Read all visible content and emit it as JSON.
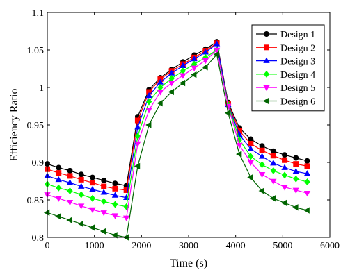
{
  "chart_data": {
    "type": "line",
    "title": "",
    "xlabel": "Time (s)",
    "ylabel": "Efficiency Ratio",
    "xlim": [
      0,
      6000
    ],
    "ylim": [
      0.8,
      1.1
    ],
    "xticks": [
      "0",
      "1000",
      "2000",
      "3000",
      "4000",
      "5000",
      "6000"
    ],
    "yticks": [
      "0.8",
      "0.85",
      "0.9",
      "0.95",
      "1",
      "1.05",
      "1.1"
    ],
    "grid": false,
    "legend_position": "top-right",
    "x": [
      0,
      240,
      480,
      720,
      960,
      1200,
      1440,
      1680,
      1920,
      2160,
      2400,
      2640,
      2880,
      3120,
      3360,
      3600,
      3840,
      4080,
      4320,
      4560,
      4800,
      5040,
      5280,
      5520
    ],
    "series": [
      {
        "name": "Design 1",
        "color": "#000000",
        "marker": "circle",
        "values": [
          0.898,
          0.893,
          0.889,
          0.884,
          0.88,
          0.876,
          0.872,
          0.869,
          0.961,
          0.997,
          1.013,
          1.024,
          1.034,
          1.043,
          1.051,
          1.061,
          0.98,
          0.946,
          0.931,
          0.922,
          0.915,
          0.91,
          0.906,
          0.902
        ]
      },
      {
        "name": "Design 2",
        "color": "#ff0000",
        "marker": "square",
        "values": [
          0.891,
          0.886,
          0.882,
          0.877,
          0.873,
          0.868,
          0.865,
          0.863,
          0.956,
          0.994,
          1.011,
          1.022,
          1.031,
          1.04,
          1.049,
          1.059,
          0.978,
          0.942,
          0.925,
          0.916,
          0.909,
          0.903,
          0.898,
          0.895
        ]
      },
      {
        "name": "Design 3",
        "color": "#0000ff",
        "marker": "triangle-up",
        "values": [
          0.882,
          0.877,
          0.873,
          0.868,
          0.864,
          0.86,
          0.856,
          0.853,
          0.947,
          0.989,
          1.007,
          1.019,
          1.029,
          1.038,
          1.047,
          1.058,
          0.977,
          0.937,
          0.918,
          0.908,
          0.899,
          0.893,
          0.888,
          0.885
        ]
      },
      {
        "name": "Design 4",
        "color": "#00ff00",
        "marker": "diamond",
        "values": [
          0.871,
          0.866,
          0.862,
          0.857,
          0.852,
          0.848,
          0.844,
          0.841,
          0.935,
          0.981,
          1.0,
          1.012,
          1.022,
          1.031,
          1.04,
          1.05,
          0.977,
          0.93,
          0.908,
          0.897,
          0.889,
          0.883,
          0.878,
          0.874
        ]
      },
      {
        "name": "Design 5",
        "color": "#ff00ff",
        "marker": "triangle-down",
        "values": [
          0.857,
          0.852,
          0.847,
          0.842,
          0.837,
          0.833,
          0.829,
          0.826,
          0.925,
          0.97,
          0.994,
          1.006,
          1.016,
          1.026,
          1.036,
          1.05,
          0.975,
          0.923,
          0.9,
          0.884,
          0.875,
          0.867,
          0.863,
          0.859
        ]
      },
      {
        "name": "Design 6",
        "color": "#006400",
        "marker": "triangle-left",
        "values": [
          0.833,
          0.828,
          0.823,
          0.818,
          0.813,
          0.808,
          0.803,
          0.8,
          0.895,
          0.95,
          0.979,
          0.994,
          1.006,
          1.017,
          1.027,
          1.044,
          0.966,
          0.911,
          0.88,
          0.862,
          0.852,
          0.846,
          0.84,
          0.836
        ]
      }
    ]
  }
}
